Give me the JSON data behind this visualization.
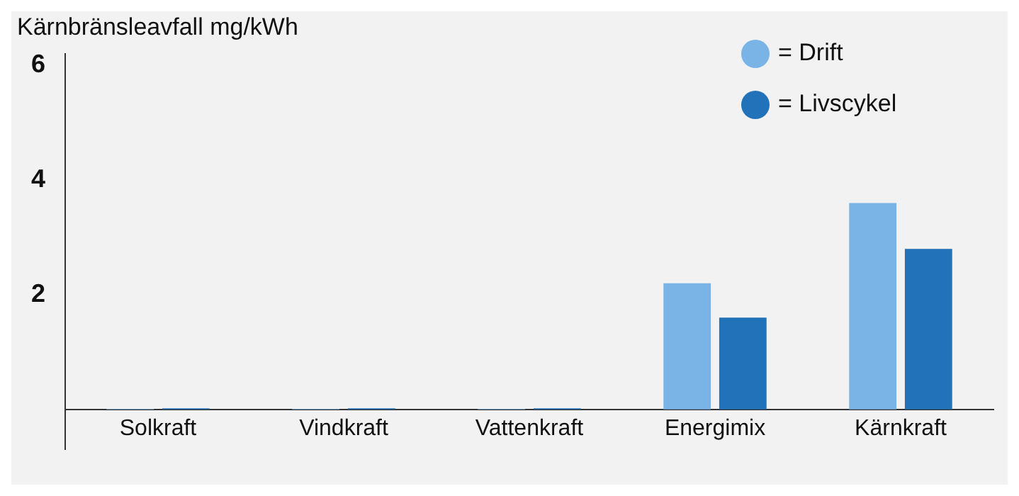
{
  "chart_data": {
    "type": "bar",
    "ylabel": "Kärnbränsleavfall mg/kWh",
    "categories": [
      "Solkraft",
      "Vindkraft",
      "Vattenkraft",
      "Energimix",
      "Kärnkraft"
    ],
    "series": [
      {
        "name": "= Drift",
        "color": "#7ab4e6",
        "values": [
          0.01,
          0.01,
          0.01,
          2.2,
          3.6
        ]
      },
      {
        "name": "= Livscykel",
        "color": "#2272b9",
        "values": [
          0.02,
          0.02,
          0.02,
          1.6,
          2.8
        ]
      }
    ],
    "ylim": [
      -0.7,
      6.2
    ],
    "yticks": [
      2,
      4,
      6
    ],
    "grid": false,
    "legend": "top right"
  }
}
